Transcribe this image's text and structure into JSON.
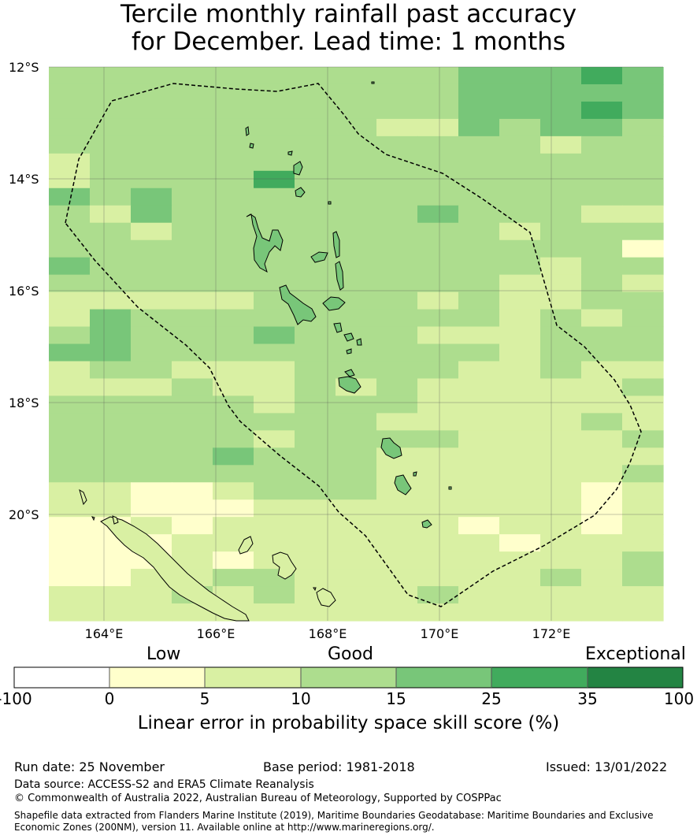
{
  "title_line1": "Tercile monthly rainfall past accuracy",
  "title_line2": "for December. Lead time: 1 months",
  "map": {
    "lon_labels": [
      "164°E",
      "166°E",
      "168°E",
      "170°E",
      "172°E"
    ],
    "lat_labels": [
      "12°S",
      "14°S",
      "16°S",
      "18°S",
      "20°S"
    ],
    "cell_level_colors": [
      "#ffffff",
      "#ffffcc",
      "#d9f0a3",
      "#addd8e",
      "#78c679",
      "#41ab5d",
      "#238443"
    ],
    "grid_levels": [
      "333333333344454",
      "333333333344444",
      "333333333344454",
      "333333332243443",
      "333333333333233",
      "233333333333333",
      "233335333333333",
      "434333333333333",
      "324333333433322",
      "332333333332333",
      "333333333333331",
      "433333333333233",
      "333333333332232",
      "222223333232233",
      "243333333332323",
      "343334333222333",
      "443333333332333",
      "233222333322322",
      "222322323222223",
      "333332333222222",
      "333333332222232",
      "333332333322223",
      "333343332222222",
      "333333332222223",
      "221123332222212",
      "221112222222212",
      "112122222212212",
      "111222222221222",
      "111212222222223",
      "112233222222323",
      "222323222322222",
      "222222222222222"
    ]
  },
  "colorbar": {
    "label_low": "Low",
    "label_good": "Good",
    "label_exceptional": "Exceptional",
    "colors": [
      "#ffffff",
      "#ffffcc",
      "#d9f0a3",
      "#addd8e",
      "#78c679",
      "#41ab5d",
      "#238443"
    ],
    "tick_labels": [
      "-100",
      "0",
      "5",
      "10",
      "15",
      "25",
      "35",
      "100"
    ],
    "title": "Linear error in probability space skill score (%)"
  },
  "footer": {
    "run_date": "Run date: 25 November",
    "base_period": "Base period: 1981-2018",
    "issued": "Issued: 13/01/2022",
    "data_source": "Data source: ACCESS-S2 and ERA5 Climate Reanalysis",
    "copyright": "© Commonwealth of Australia 2022, Australian Bureau of Meteorology, Supported by COSPPac",
    "shapefile_line1": "Shapefile data extracted from Flanders Marine Institute (2019), Maritime Boundaries Geodatabase: Maritime Boundaries and Exclusive",
    "shapefile_line2": "Economic Zones (200NM), version 11. Available online at http://www.marineregions.org/."
  }
}
